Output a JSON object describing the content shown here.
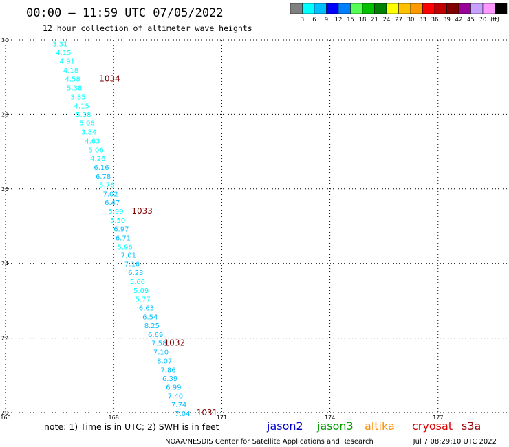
{
  "title": "00:00 – 11:59 UTC 07/05/2022",
  "subtitle": "12 hour collection of altimeter wave heights",
  "colorbar": {
    "colors": [
      "#808080",
      "#00ffff",
      "#00bfff",
      "#0000ff",
      "#0080ff",
      "#55ff55",
      "#00c000",
      "#008000",
      "#ffff00",
      "#ffc000",
      "#ff9900",
      "#ff0000",
      "#c00000",
      "#800000",
      "#990099",
      "#c8a0ff",
      "#ff99ff",
      "#000000"
    ],
    "labels": [
      "3",
      "6",
      "9",
      "12",
      "15",
      "18",
      "21",
      "24",
      "27",
      "30",
      "33",
      "36",
      "39",
      "42",
      "45",
      "70",
      "(ft)"
    ]
  },
  "note": "note:  1) Time is in UTC;  2) SWH is in feet",
  "satellites": [
    {
      "name": "jason2",
      "color": "#0000cc"
    },
    {
      "name": "jason3",
      "color": "#009900"
    },
    {
      "name": "altika",
      "color": "#ff8c00"
    },
    {
      "name": "cryosat",
      "color": "#dd0000"
    },
    {
      "name": "s3a",
      "color": "#990000"
    }
  ],
  "credit": "NOAA/NESDIS Center for Satellite Applications and Research",
  "timestamp": "Jul  7 08:29:10 UTC 2022",
  "chart_data": {
    "type": "scatter",
    "xlim": [
      165,
      180
    ],
    "ylim": [
      20,
      30
    ],
    "x_ticks": [
      165,
      168,
      171,
      174,
      177
    ],
    "y_ticks": [
      20,
      22,
      24,
      26,
      28,
      30
    ],
    "grid": true,
    "track_points": [
      {
        "lon": 166.3,
        "lat": 29.9,
        "swh": "3.31",
        "color": "#00ffff"
      },
      {
        "lon": 166.4,
        "lat": 29.67,
        "swh": "4.15",
        "color": "#00ffff"
      },
      {
        "lon": 166.5,
        "lat": 29.44,
        "swh": "4.91",
        "color": "#00ffff"
      },
      {
        "lon": 166.6,
        "lat": 29.19,
        "swh": "4.18",
        "color": "#00ffff"
      },
      {
        "lon": 166.65,
        "lat": 28.96,
        "swh": "4.58",
        "color": "#00ffff"
      },
      {
        "lon": 166.7,
        "lat": 28.72,
        "swh": "5.38",
        "color": "#00ffff"
      },
      {
        "lon": 166.8,
        "lat": 28.48,
        "swh": "3.85",
        "color": "#00ffff"
      },
      {
        "lon": 166.9,
        "lat": 28.24,
        "swh": "4.15",
        "color": "#00ffff"
      },
      {
        "lon": 166.95,
        "lat": 28.01,
        "swh": "5.38",
        "color": "#00ffff"
      },
      {
        "lon": 167.05,
        "lat": 27.78,
        "swh": "5.06",
        "color": "#00ffff"
      },
      {
        "lon": 167.1,
        "lat": 27.54,
        "swh": "3.84",
        "color": "#00ffff"
      },
      {
        "lon": 167.2,
        "lat": 27.3,
        "swh": "4.63",
        "color": "#00ffff"
      },
      {
        "lon": 167.3,
        "lat": 27.06,
        "swh": "5.06",
        "color": "#00ffff"
      },
      {
        "lon": 167.35,
        "lat": 26.83,
        "swh": "4.26",
        "color": "#00ffff"
      },
      {
        "lon": 167.45,
        "lat": 26.59,
        "swh": "6.16",
        "color": "#00bfff"
      },
      {
        "lon": 167.5,
        "lat": 26.35,
        "swh": "6.78",
        "color": "#00bfff"
      },
      {
        "lon": 167.6,
        "lat": 26.12,
        "swh": "5.76",
        "color": "#00ffff"
      },
      {
        "lon": 167.7,
        "lat": 25.88,
        "swh": "7.02",
        "color": "#00bfff"
      },
      {
        "lon": 167.75,
        "lat": 25.65,
        "swh": "6.47",
        "color": "#00bfff"
      },
      {
        "lon": 167.85,
        "lat": 25.41,
        "swh": "5.99",
        "color": "#00ffff"
      },
      {
        "lon": 167.9,
        "lat": 25.17,
        "swh": "5.50",
        "color": "#00ffff"
      },
      {
        "lon": 168.0,
        "lat": 24.94,
        "swh": "6.97",
        "color": "#00bfff"
      },
      {
        "lon": 168.05,
        "lat": 24.7,
        "swh": "6.71",
        "color": "#00bfff"
      },
      {
        "lon": 168.1,
        "lat": 24.46,
        "swh": "5.96",
        "color": "#00ffff"
      },
      {
        "lon": 168.2,
        "lat": 24.23,
        "swh": "7.01",
        "color": "#00bfff"
      },
      {
        "lon": 168.3,
        "lat": 23.99,
        "swh": "7.16",
        "color": "#00bfff"
      },
      {
        "lon": 168.4,
        "lat": 23.76,
        "swh": "6.23",
        "color": "#00bfff"
      },
      {
        "lon": 168.45,
        "lat": 23.52,
        "swh": "5.66",
        "color": "#00ffff"
      },
      {
        "lon": 168.55,
        "lat": 23.28,
        "swh": "5.09",
        "color": "#00ffff"
      },
      {
        "lon": 168.6,
        "lat": 23.05,
        "swh": "5.77",
        "color": "#00ffff"
      },
      {
        "lon": 168.7,
        "lat": 22.81,
        "swh": "6.63",
        "color": "#00bfff"
      },
      {
        "lon": 168.8,
        "lat": 22.57,
        "swh": "6.54",
        "color": "#00bfff"
      },
      {
        "lon": 168.85,
        "lat": 22.34,
        "swh": "8.25",
        "color": "#00bfff"
      },
      {
        "lon": 168.95,
        "lat": 22.1,
        "swh": "6.69",
        "color": "#00bfff"
      },
      {
        "lon": 169.05,
        "lat": 21.87,
        "swh": "7.58",
        "color": "#00bfff"
      },
      {
        "lon": 169.1,
        "lat": 21.63,
        "swh": "7.10",
        "color": "#00bfff"
      },
      {
        "lon": 169.2,
        "lat": 21.39,
        "swh": "8.07",
        "color": "#00bfff"
      },
      {
        "lon": 169.3,
        "lat": 21.15,
        "swh": "7.86",
        "color": "#00bfff"
      },
      {
        "lon": 169.35,
        "lat": 20.92,
        "swh": "6.39",
        "color": "#00bfff"
      },
      {
        "lon": 169.45,
        "lat": 20.69,
        "swh": "6.99",
        "color": "#00bfff"
      },
      {
        "lon": 169.5,
        "lat": 20.45,
        "swh": "7.40",
        "color": "#00bfff"
      },
      {
        "lon": 169.6,
        "lat": 20.22,
        "swh": "7.74",
        "color": "#00bfff"
      },
      {
        "lon": 169.7,
        "lat": 19.98,
        "swh": "7.04",
        "color": "#00bfff"
      }
    ],
    "cycle_labels": [
      {
        "text": "1034",
        "lon": 167.6,
        "lat": 28.96
      },
      {
        "text": "1033",
        "lon": 168.5,
        "lat": 25.41
      },
      {
        "text": "1032",
        "lon": 169.4,
        "lat": 21.87
      },
      {
        "text": "1031",
        "lon": 170.3,
        "lat": 20.0
      }
    ]
  }
}
